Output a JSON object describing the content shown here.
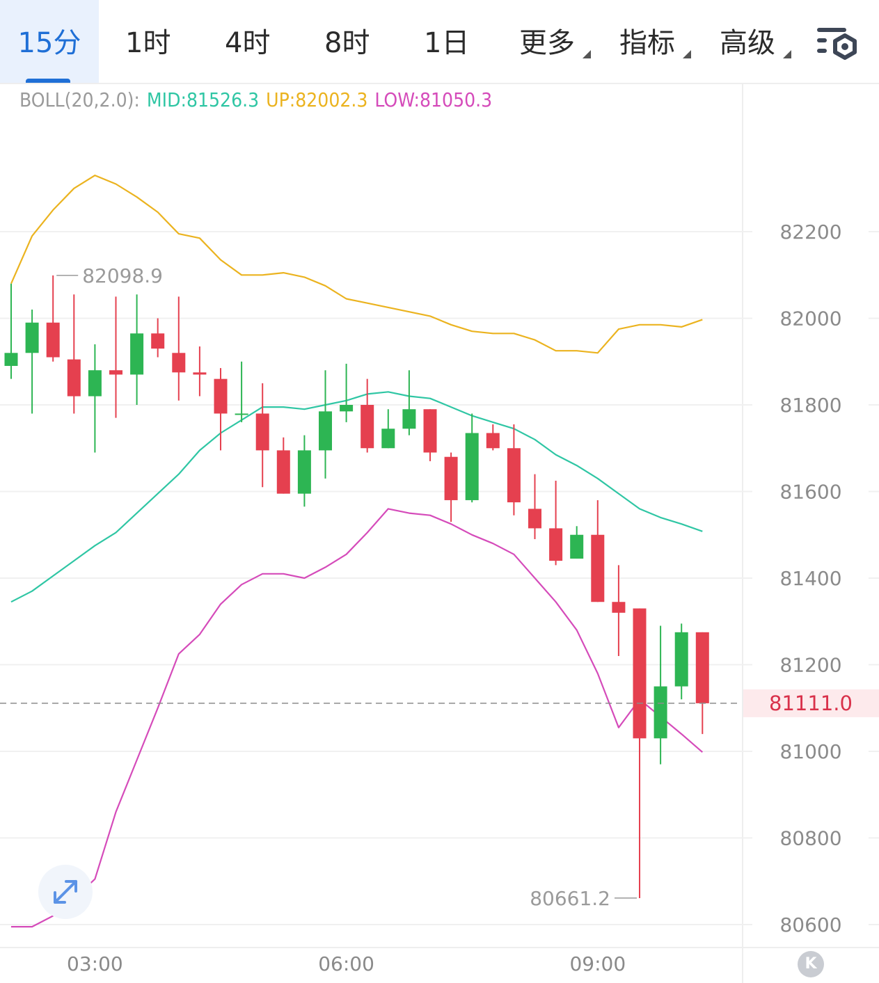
{
  "tabs": [
    {
      "label": "15分",
      "active": true
    },
    {
      "label": "1时"
    },
    {
      "label": "4时"
    },
    {
      "label": "8时"
    },
    {
      "label": "1日"
    },
    {
      "label": "更多",
      "dropdown": true
    },
    {
      "label": "指标",
      "dropdown": true
    },
    {
      "label": "高级",
      "dropdown": true
    }
  ],
  "legend": {
    "indicator": "BOLL(20,2.0):",
    "mid": "MID:81526.3",
    "up": "UP:82002.3",
    "low": "LOW:81050.3"
  },
  "colors": {
    "active_tab": "#1f6fd6",
    "up_candle": "#2db553",
    "down_candle": "#e5404f",
    "boll_mid": "#2fc6a4",
    "boll_up": "#ebb31f",
    "boll_low": "#d54bba",
    "last_price": "#d9314a",
    "last_price_bg": "#fdeaec"
  },
  "icons": {
    "settings": "chart-settings-icon",
    "expand": "expand-arrows-icon",
    "k_button": "k-logo-icon"
  },
  "k_button_label": "K",
  "chart_data": {
    "type": "candlestick",
    "interval": "15分",
    "ylim": [
      80520,
      82560
    ],
    "yticks": [
      82200,
      82000,
      81800,
      81600,
      81400,
      81200,
      81000,
      80800,
      80600
    ],
    "time_labels": [
      {
        "candle_index": 4,
        "label": "03:00"
      },
      {
        "candle_index": 16,
        "label": "06:00"
      },
      {
        "candle_index": 28,
        "label": "09:00"
      }
    ],
    "last_price": 81111.0,
    "last_price_label": "81111.0",
    "max_label": {
      "candle_index": 2,
      "value": 82098.9,
      "text": "82098.9"
    },
    "min_label": {
      "candle_index": 30,
      "value": 80661.2,
      "text": "80661.2"
    },
    "candles": [
      {
        "o": 81890,
        "h": 82080,
        "l": 81860,
        "c": 81920
      },
      {
        "o": 81920,
        "h": 82020,
        "l": 81780,
        "c": 81990
      },
      {
        "o": 81990,
        "h": 82099,
        "l": 81900,
        "c": 81910
      },
      {
        "o": 81905,
        "h": 82055,
        "l": 81780,
        "c": 81820
      },
      {
        "o": 81820,
        "h": 81940,
        "l": 81690,
        "c": 81880
      },
      {
        "o": 81880,
        "h": 82050,
        "l": 81770,
        "c": 81870
      },
      {
        "o": 81870,
        "h": 82055,
        "l": 81800,
        "c": 81965
      },
      {
        "o": 81965,
        "h": 82000,
        "l": 81910,
        "c": 81930
      },
      {
        "o": 81920,
        "h": 82050,
        "l": 81810,
        "c": 81875
      },
      {
        "o": 81875,
        "h": 81935,
        "l": 81820,
        "c": 81870
      },
      {
        "o": 81860,
        "h": 81885,
        "l": 81695,
        "c": 81780
      },
      {
        "o": 81780,
        "h": 81900,
        "l": 81760,
        "c": 81780
      },
      {
        "o": 81780,
        "h": 81850,
        "l": 81610,
        "c": 81695
      },
      {
        "o": 81695,
        "h": 81725,
        "l": 81595,
        "c": 81595
      },
      {
        "o": 81595,
        "h": 81730,
        "l": 81565,
        "c": 81695
      },
      {
        "o": 81695,
        "h": 81880,
        "l": 81630,
        "c": 81785
      },
      {
        "o": 81785,
        "h": 81895,
        "l": 81760,
        "c": 81800
      },
      {
        "o": 81800,
        "h": 81860,
        "l": 81690,
        "c": 81700
      },
      {
        "o": 81700,
        "h": 81790,
        "l": 81700,
        "c": 81745
      },
      {
        "o": 81745,
        "h": 81880,
        "l": 81730,
        "c": 81790
      },
      {
        "o": 81790,
        "h": 81790,
        "l": 81670,
        "c": 81690
      },
      {
        "o": 81680,
        "h": 81690,
        "l": 81530,
        "c": 81580
      },
      {
        "o": 81580,
        "h": 81780,
        "l": 81575,
        "c": 81735
      },
      {
        "o": 81735,
        "h": 81755,
        "l": 81695,
        "c": 81700
      },
      {
        "o": 81700,
        "h": 81755,
        "l": 81545,
        "c": 81575
      },
      {
        "o": 81560,
        "h": 81640,
        "l": 81490,
        "c": 81515
      },
      {
        "o": 81515,
        "h": 81625,
        "l": 81430,
        "c": 81440
      },
      {
        "o": 81445,
        "h": 81520,
        "l": 81445,
        "c": 81500
      },
      {
        "o": 81500,
        "h": 81580,
        "l": 81345,
        "c": 81345
      },
      {
        "o": 81345,
        "h": 81430,
        "l": 81220,
        "c": 81320
      },
      {
        "o": 81330,
        "h": 81330,
        "l": 80661,
        "c": 81030
      },
      {
        "o": 81030,
        "h": 81290,
        "l": 80970,
        "c": 81150
      },
      {
        "o": 81150,
        "h": 81295,
        "l": 81120,
        "c": 81275
      },
      {
        "o": 81275,
        "h": 81275,
        "l": 81040,
        "c": 81111
      }
    ],
    "series": [
      {
        "name": "UP",
        "values": [
          82080,
          82190,
          82250,
          82300,
          82330,
          82310,
          82280,
          82245,
          82195,
          82185,
          82135,
          82100,
          82100,
          82105,
          82095,
          82075,
          82045,
          82035,
          82025,
          82015,
          82005,
          81985,
          81970,
          81965,
          81965,
          81950,
          81925,
          81925,
          81920,
          81975,
          81985,
          81985,
          81980,
          81997
        ]
      },
      {
        "name": "MID",
        "values": [
          81345,
          81370,
          81405,
          81440,
          81475,
          81505,
          81550,
          81595,
          81640,
          81695,
          81735,
          81765,
          81795,
          81795,
          81790,
          81800,
          81810,
          81825,
          81830,
          81820,
          81815,
          81795,
          81775,
          81760,
          81745,
          81720,
          81685,
          81660,
          81630,
          81595,
          81560,
          81540,
          81525,
          81508
        ]
      },
      {
        "name": "LOW",
        "values": [
          80595,
          80595,
          80620,
          80660,
          80705,
          80860,
          80980,
          81100,
          81225,
          81270,
          81340,
          81385,
          81410,
          81410,
          81400,
          81425,
          81455,
          81505,
          81560,
          81550,
          81545,
          81525,
          81500,
          81480,
          81455,
          81400,
          81345,
          81280,
          81180,
          81055,
          81120,
          81080,
          81040,
          80998
        ]
      }
    ]
  }
}
